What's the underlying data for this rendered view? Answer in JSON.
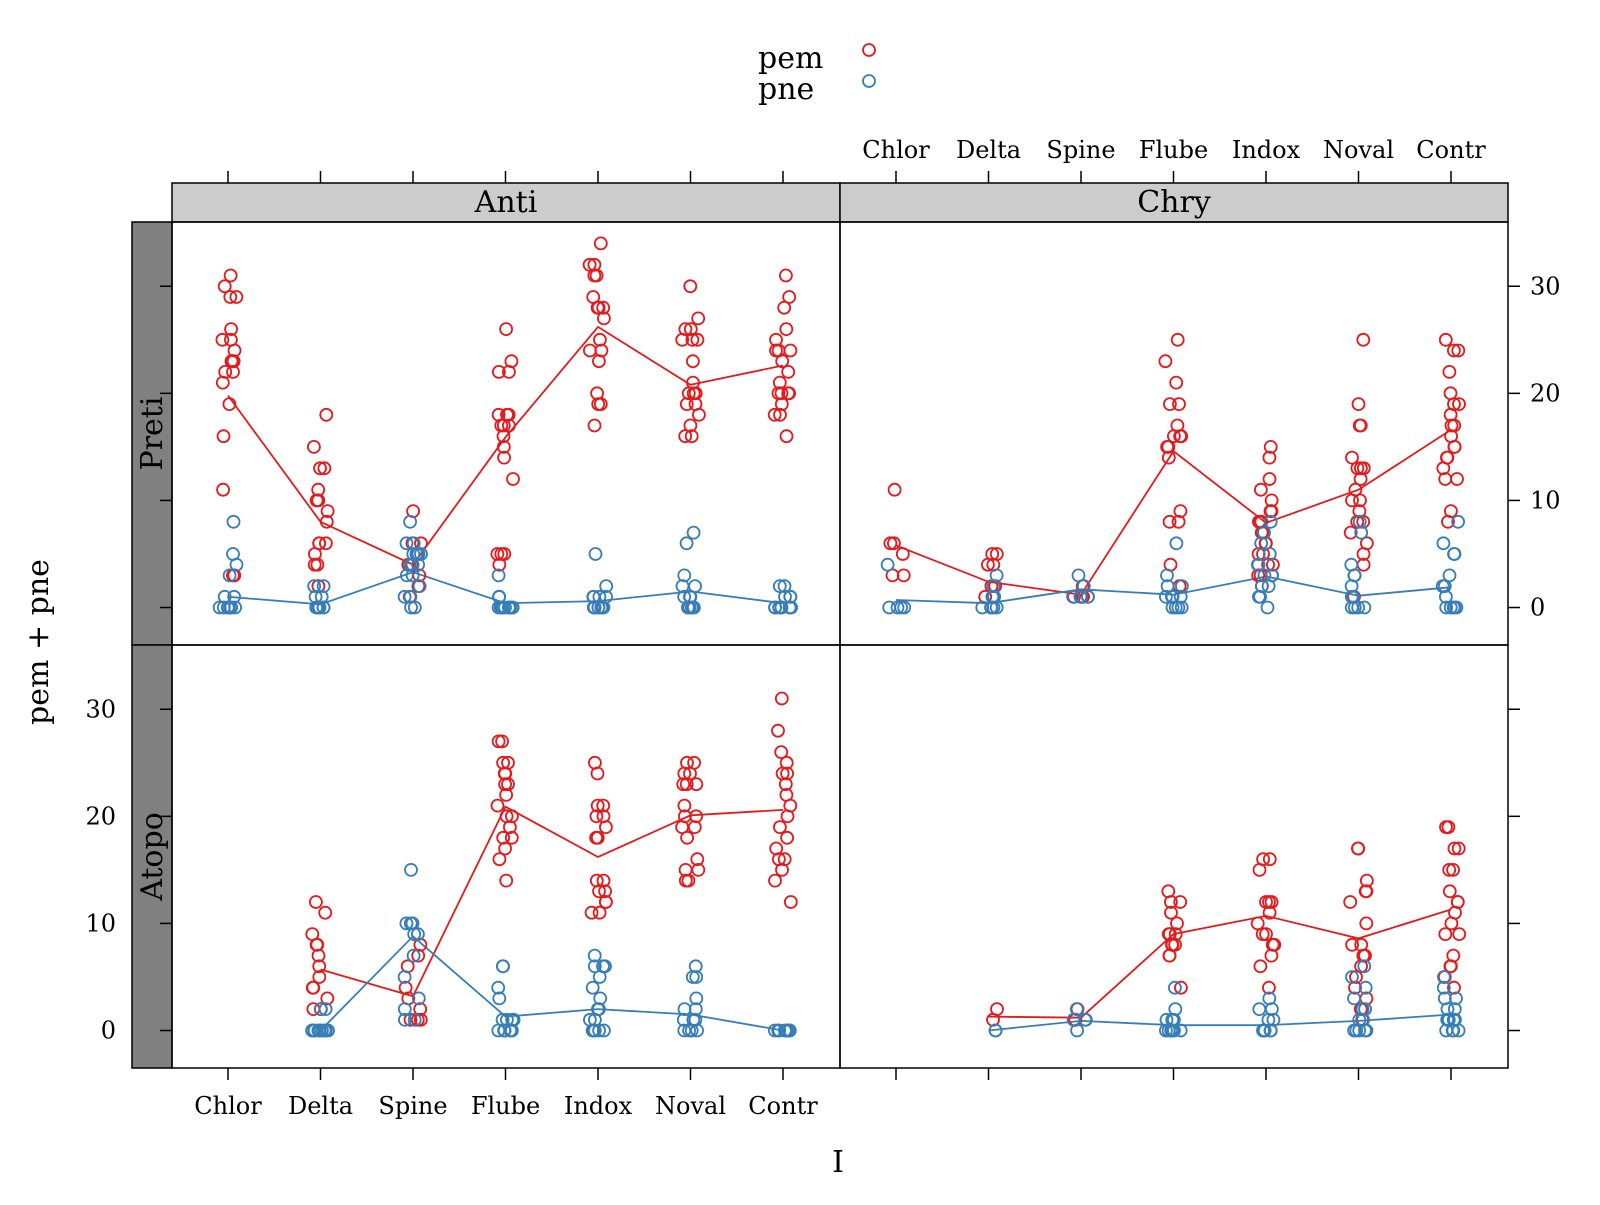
{
  "chart_data": {
    "type": "scatter",
    "xlabel": "I",
    "ylabel": "pem + pne",
    "categories": [
      "Chlor",
      "Delta",
      "Spine",
      "Flube",
      "Indox",
      "Noval",
      "Contr"
    ],
    "ylim": [
      -3.5,
      36
    ],
    "yticks": [
      0,
      10,
      20,
      30
    ],
    "legend": {
      "placement": "top-center",
      "entries": [
        {
          "name": "pem",
          "color": "#e41a1c"
        },
        {
          "name": "pne",
          "color": "#377eb8"
        }
      ]
    },
    "strips": {
      "columns": [
        "Anti",
        "Chry"
      ],
      "rows": [
        "Preti",
        "Atopo"
      ]
    },
    "series_colors": {
      "pem": "#e41a1c",
      "pne": "#377eb8"
    },
    "panels": [
      {
        "column": "Anti",
        "row": "Preti",
        "pem": {
          "Chlor": [
            31,
            30,
            29,
            29,
            26,
            25,
            25,
            24,
            23,
            23,
            23,
            22,
            22,
            21,
            19,
            16,
            11,
            3,
            3
          ],
          "Delta": [
            18,
            15,
            13,
            13,
            11,
            10,
            10,
            9,
            8,
            6,
            6,
            6,
            5,
            4,
            4,
            2
          ],
          "Spine": [
            9,
            6,
            6,
            5,
            4,
            4,
            3,
            2,
            1
          ],
          "Flube": [
            26,
            23,
            22,
            22,
            18,
            18,
            18,
            17,
            17,
            17,
            16,
            15,
            14,
            12,
            5,
            5,
            5,
            4
          ],
          "Indox": [
            34,
            32,
            32,
            31,
            31,
            29,
            28,
            28,
            28,
            27,
            25,
            24,
            24,
            23,
            20,
            19,
            19,
            17
          ],
          "Noval": [
            30,
            27,
            26,
            26,
            25,
            25,
            25,
            23,
            21,
            20,
            20,
            20,
            19,
            19,
            18,
            17,
            16,
            16
          ],
          "Contr": [
            31,
            29,
            28,
            26,
            25,
            24,
            24,
            24,
            23,
            22,
            21,
            20,
            20,
            20,
            20,
            19,
            18,
            18,
            16
          ]
        },
        "pne": {
          "Chlor": [
            8,
            5,
            4,
            3,
            1,
            1,
            0,
            0,
            0,
            0,
            0,
            0,
            0,
            0,
            0
          ],
          "Delta": [
            2,
            2,
            1,
            1,
            0,
            0,
            0,
            0,
            0,
            0,
            0
          ],
          "Spine": [
            8,
            6,
            6,
            5,
            5,
            5,
            5,
            4,
            4,
            4,
            3,
            3,
            2,
            1,
            1,
            0,
            0
          ],
          "Flube": [
            3,
            1,
            1,
            1,
            0,
            0,
            0,
            0,
            0,
            0,
            0,
            0,
            0,
            0
          ],
          "Indox": [
            5,
            2,
            1,
            1,
            1,
            1,
            0,
            0,
            0,
            0,
            0,
            0,
            0,
            0,
            0
          ],
          "Noval": [
            7,
            6,
            3,
            2,
            2,
            1,
            1,
            1,
            0,
            0,
            0,
            0,
            0,
            0,
            0
          ],
          "Contr": [
            2,
            2,
            1,
            1,
            1,
            0,
            0,
            0,
            0,
            0,
            0,
            0,
            0,
            0
          ]
        },
        "pem_mean_line": {
          "Chlor": 19.8,
          "Delta": 8.0,
          "Spine": 4.0,
          "Flube": 15.9,
          "Indox": 26.2,
          "Noval": 20.8,
          "Contr": 22.6
        },
        "pne_mean_line": {
          "Chlor": 1.0,
          "Delta": 0.3,
          "Spine": 3.3,
          "Flube": 0.4,
          "Indox": 0.6,
          "Noval": 1.5,
          "Contr": 0.4
        }
      },
      {
        "column": "Chry",
        "row": "Preti",
        "pem": {
          "Chlor": [
            11,
            6,
            6,
            5,
            3,
            3
          ],
          "Delta": [
            5,
            5,
            4,
            4,
            2,
            2,
            1,
            1
          ],
          "Spine": [
            2,
            1,
            1,
            1,
            1
          ],
          "Flube": [
            25,
            23,
            21,
            19,
            19,
            17,
            16,
            16,
            16,
            15,
            15,
            14,
            9,
            8,
            8,
            4,
            2
          ],
          "Indox": [
            15,
            14,
            12,
            11,
            10,
            9,
            9,
            8,
            8,
            8,
            7,
            7,
            6,
            6,
            5,
            5,
            4,
            4,
            3,
            3,
            2
          ],
          "Noval": [
            25,
            19,
            17,
            17,
            14,
            13,
            13,
            13,
            12,
            11,
            10,
            10,
            9,
            8,
            8,
            7,
            6,
            5,
            4,
            1
          ],
          "Contr": [
            25,
            24,
            24,
            22,
            20,
            19,
            19,
            18,
            17,
            17,
            16,
            15,
            15,
            14,
            14,
            13,
            12,
            12,
            9,
            8
          ]
        },
        "pne": {
          "Chlor": [
            4,
            0,
            0,
            0,
            0
          ],
          "Delta": [
            3,
            2,
            1,
            1,
            0,
            0,
            0,
            0,
            0
          ],
          "Spine": [
            3,
            2,
            1,
            1,
            1,
            1
          ],
          "Flube": [
            6,
            3,
            2,
            2,
            1,
            1,
            1,
            1,
            0,
            0,
            0,
            0
          ],
          "Indox": [
            8,
            7,
            6,
            5,
            4,
            4,
            3,
            3,
            3,
            2,
            2,
            1,
            1,
            0
          ],
          "Noval": [
            8,
            7,
            4,
            3,
            3,
            2,
            1,
            1,
            0,
            0,
            0,
            0
          ],
          "Contr": [
            8,
            6,
            5,
            5,
            3,
            2,
            2,
            1,
            0,
            0,
            0,
            0,
            0
          ]
        },
        "pem_mean_line": {
          "Chlor": 5.8,
          "Delta": 2.4,
          "Spine": 1.2,
          "Flube": 14.6,
          "Indox": 7.9,
          "Noval": 11.0,
          "Contr": 16.6
        },
        "pne_mean_line": {
          "Chlor": 0.7,
          "Delta": 0.4,
          "Spine": 1.7,
          "Flube": 1.2,
          "Indox": 2.9,
          "Noval": 1.1,
          "Contr": 1.9
        }
      },
      {
        "column": "Anti",
        "row": "Atopo",
        "pem": {
          "Chlor": [],
          "Delta": [
            12,
            11,
            9,
            8,
            8,
            7,
            6,
            5,
            4,
            4,
            3,
            2,
            2
          ],
          "Spine": [
            8,
            7,
            6,
            4,
            3,
            2,
            1,
            1,
            1
          ],
          "Flube": [
            27,
            27,
            25,
            25,
            24,
            24,
            23,
            23,
            22,
            21,
            20,
            20,
            19,
            18,
            18,
            17,
            16,
            14
          ],
          "Indox": [
            25,
            24,
            21,
            21,
            20,
            20,
            19,
            18,
            18,
            14,
            14,
            13,
            13,
            12,
            12,
            11,
            11
          ],
          "Noval": [
            25,
            25,
            24,
            24,
            23,
            23,
            23,
            21,
            20,
            20,
            19,
            19,
            18,
            16,
            15,
            15,
            14,
            14
          ],
          "Contr": [
            31,
            28,
            26,
            25,
            24,
            24,
            23,
            22,
            21,
            20,
            19,
            18,
            17,
            16,
            16,
            15,
            14,
            12
          ]
        },
        "pne": {
          "Chlor": [],
          "Delta": [
            2,
            2,
            0,
            0,
            0,
            0,
            0,
            0,
            0,
            0,
            0
          ],
          "Spine": [
            15,
            10,
            10,
            10,
            9,
            9,
            7,
            5,
            3,
            2,
            1,
            1
          ],
          "Flube": [
            6,
            6,
            4,
            3,
            1,
            1,
            1,
            1,
            0,
            0,
            0,
            0,
            0,
            0
          ],
          "Indox": [
            7,
            6,
            6,
            6,
            5,
            4,
            3,
            2,
            2,
            1,
            1,
            0,
            0,
            0,
            0,
            0
          ],
          "Noval": [
            6,
            5,
            5,
            3,
            2,
            2,
            1,
            1,
            1,
            0,
            0,
            0,
            0
          ],
          "Contr": [
            0,
            0,
            0,
            0,
            0,
            0,
            0,
            0,
            0,
            0
          ]
        },
        "pem_mean_line": {
          "Delta": 5.7,
          "Spine": 3.2,
          "Flube": 20.9,
          "Indox": 16.2,
          "Noval": 20.1,
          "Contr": 20.6
        },
        "pne_mean_line": {
          "Delta": 0.0,
          "Spine": 8.8,
          "Flube": 1.3,
          "Indox": 2.0,
          "Noval": 1.5,
          "Contr": 0.0
        }
      },
      {
        "column": "Chry",
        "row": "Atopo",
        "pem": {
          "Chlor": [],
          "Delta": [
            2,
            1
          ],
          "Spine": [
            2,
            1,
            1
          ],
          "Flube": [
            13,
            12,
            12,
            11,
            10,
            9,
            9,
            9,
            8,
            8,
            8,
            8,
            7,
            7,
            4
          ],
          "Indox": [
            16,
            16,
            15,
            12,
            12,
            12,
            11,
            10,
            9,
            9,
            8,
            8,
            7,
            6,
            4
          ],
          "Noval": [
            17,
            17,
            14,
            13,
            13,
            12,
            10,
            8,
            8,
            7,
            7,
            6,
            5,
            4,
            3,
            2,
            2,
            1
          ],
          "Contr": [
            19,
            19,
            17,
            17,
            15,
            15,
            13,
            12,
            12,
            11,
            10,
            9,
            9,
            7,
            6,
            6,
            5,
            4
          ]
        },
        "pne": {
          "Chlor": [],
          "Delta": [
            0,
            0
          ],
          "Spine": [
            2,
            1,
            1,
            1,
            0
          ],
          "Flube": [
            4,
            2,
            1,
            1,
            1,
            0,
            0,
            0,
            0,
            0,
            0
          ],
          "Indox": [
            3,
            2,
            2,
            1,
            1,
            0,
            0,
            0,
            0,
            0,
            0,
            0
          ],
          "Noval": [
            6,
            5,
            4,
            3,
            2,
            2,
            1,
            1,
            0,
            0,
            0,
            0,
            0
          ],
          "Contr": [
            5,
            4,
            3,
            3,
            2,
            2,
            1,
            1,
            1,
            1,
            0,
            0,
            0,
            0
          ]
        },
        "pem_mean_line": {
          "Delta": 1.3,
          "Spine": 1.2,
          "Flube": 9.0,
          "Indox": 10.7,
          "Noval": 8.6,
          "Contr": 11.3
        },
        "pne_mean_line": {
          "Delta": 0.0,
          "Spine": 0.9,
          "Flube": 0.5,
          "Indox": 0.5,
          "Noval": 0.9,
          "Contr": 1.5
        }
      }
    ]
  }
}
